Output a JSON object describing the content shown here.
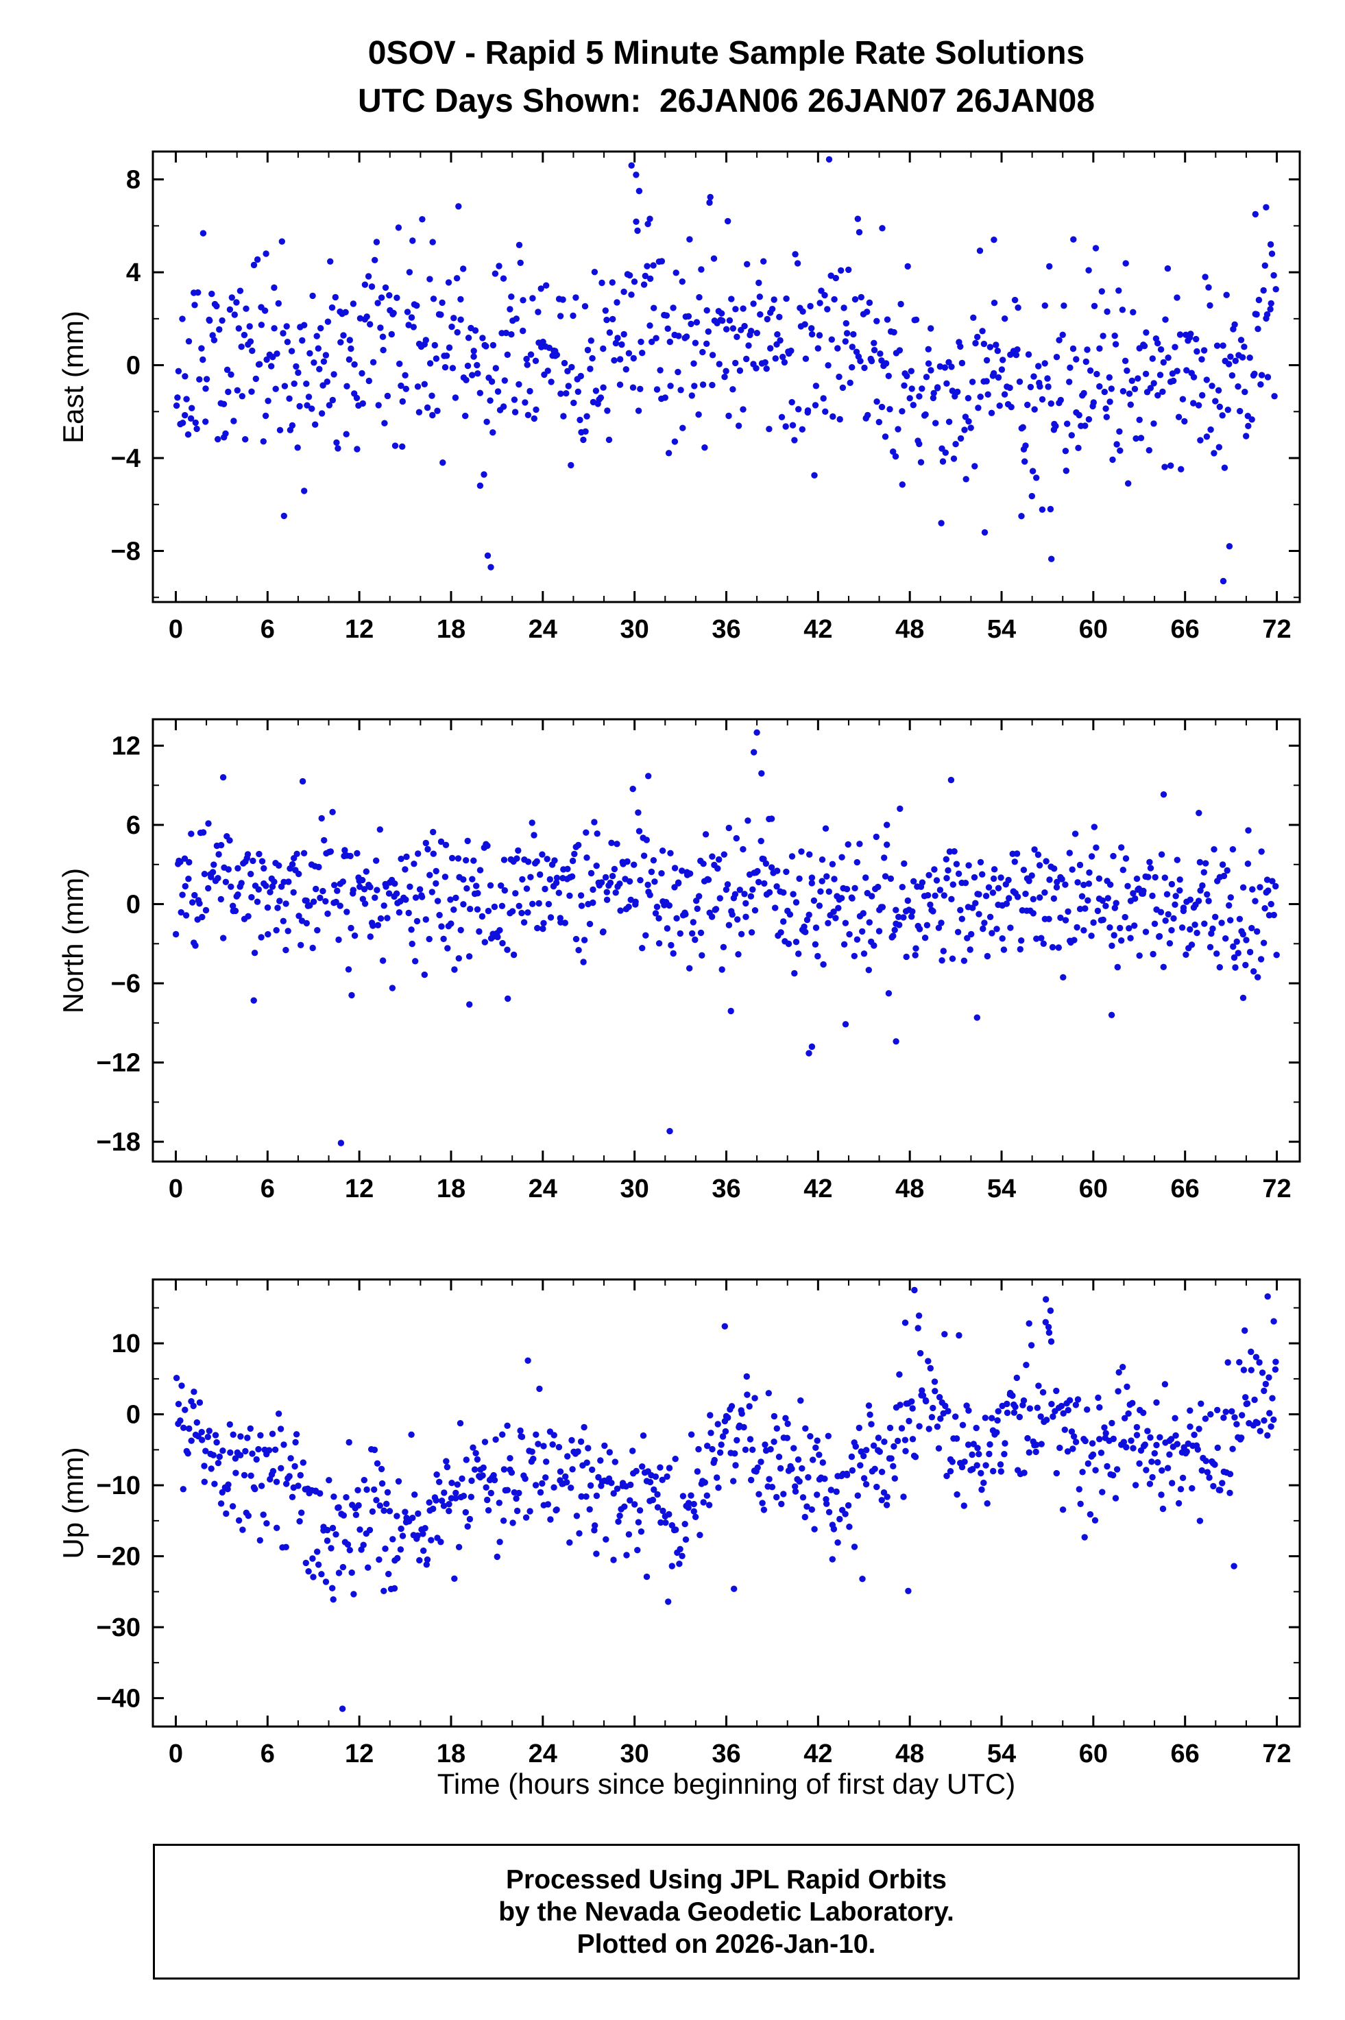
{
  "title": {
    "line1": "0SOV - Rapid 5 Minute Sample Rate Solutions",
    "line2": "UTC Days Shown:  26JAN06 26JAN07 26JAN08"
  },
  "xaxis": {
    "label": "Time (hours since beginning of first day UTC)",
    "lim": [
      -1.5,
      73.5
    ],
    "ticks": [
      0,
      6,
      12,
      18,
      24,
      30,
      36,
      42,
      48,
      54,
      60,
      66,
      72
    ],
    "minor_step": 2
  },
  "marker": {
    "color": "#0e0edd",
    "radius": 4.7
  },
  "seed": 1234567,
  "footer": {
    "line1": "Processed Using JPL Rapid Orbits",
    "line2": "by the Nevada Geodetic Laboratory.",
    "line3": "Plotted on 2026-Jan-10."
  },
  "chart_data": [
    {
      "type": "scatter",
      "series": "East",
      "ylabel": "East (mm)",
      "ylim": [
        -10.2,
        9.2
      ],
      "yticks": [
        -8,
        -4,
        0,
        4,
        8
      ],
      "y_minor_step": 2,
      "n_points": 850,
      "x_range": [
        0,
        72
      ],
      "noise_std": 2.1,
      "mean_path": [
        [
          0,
          -0.5
        ],
        [
          2,
          0.3
        ],
        [
          4,
          0.8
        ],
        [
          6,
          1.2
        ],
        [
          8,
          -0.5
        ],
        [
          10,
          0.0
        ],
        [
          12,
          1.0
        ],
        [
          14,
          0.5
        ],
        [
          16,
          1.2
        ],
        [
          18,
          0.8
        ],
        [
          20,
          -1.0
        ],
        [
          22,
          0.5
        ],
        [
          24,
          0.3
        ],
        [
          26,
          -0.5
        ],
        [
          28,
          0.0
        ],
        [
          30,
          2.0
        ],
        [
          32,
          0.5
        ],
        [
          34,
          1.0
        ],
        [
          36,
          0.5
        ],
        [
          38,
          0.5
        ],
        [
          40,
          0.8
        ],
        [
          42,
          1.0
        ],
        [
          44,
          1.5
        ],
        [
          46,
          0.8
        ],
        [
          48,
          -0.8
        ],
        [
          50,
          -1.5
        ],
        [
          52,
          -0.8
        ],
        [
          54,
          -0.2
        ],
        [
          56,
          -2.0
        ],
        [
          58,
          -0.8
        ],
        [
          60,
          -0.3
        ],
        [
          62,
          -1.2
        ],
        [
          64,
          -0.8
        ],
        [
          66,
          -0.5
        ],
        [
          68,
          -1.5
        ],
        [
          70,
          0.5
        ],
        [
          72,
          3.0
        ]
      ],
      "outliers": [
        [
          20.4,
          -8.2
        ],
        [
          20.6,
          -8.7
        ],
        [
          29.8,
          8.6
        ],
        [
          30.1,
          8.2
        ],
        [
          30.3,
          7.5
        ],
        [
          31.0,
          6.3
        ],
        [
          34.9,
          7.0
        ],
        [
          36.1,
          6.2
        ],
        [
          44.6,
          6.3
        ],
        [
          46.2,
          5.9
        ],
        [
          53.5,
          5.4
        ],
        [
          52.9,
          -7.2
        ],
        [
          55.3,
          -6.5
        ],
        [
          57.2,
          -6.2
        ],
        [
          68.5,
          -9.3
        ],
        [
          68.9,
          -7.8
        ],
        [
          70.6,
          6.5
        ],
        [
          71.3,
          6.8
        ],
        [
          71.6,
          5.2
        ],
        [
          5.9,
          4.8
        ],
        [
          16.8,
          5.3
        ]
      ]
    },
    {
      "type": "scatter",
      "series": "North",
      "ylabel": "North (mm)",
      "ylim": [
        -19.5,
        14.0
      ],
      "yticks": [
        -18,
        -12,
        -6,
        0,
        6,
        12
      ],
      "y_minor_step": 3,
      "n_points": 850,
      "x_range": [
        0,
        72
      ],
      "noise_std": 2.6,
      "mean_path": [
        [
          0,
          1.2
        ],
        [
          4,
          1.5
        ],
        [
          8,
          0.8
        ],
        [
          12,
          1.0
        ],
        [
          16,
          0.5
        ],
        [
          20,
          0.8
        ],
        [
          24,
          0.8
        ],
        [
          28,
          1.2
        ],
        [
          32,
          0.5
        ],
        [
          36,
          0.3
        ],
        [
          38,
          2.5
        ],
        [
          40,
          0.5
        ],
        [
          44,
          -0.2
        ],
        [
          48,
          0.5
        ],
        [
          52,
          0.0
        ],
        [
          56,
          0.2
        ],
        [
          60,
          -0.2
        ],
        [
          64,
          0.3
        ],
        [
          68,
          -0.5
        ],
        [
          72,
          -0.5
        ]
      ],
      "outliers": [
        [
          10.8,
          -18.1
        ],
        [
          32.3,
          -17.2
        ],
        [
          38.0,
          13.0
        ],
        [
          37.8,
          11.5
        ],
        [
          3.1,
          9.6
        ],
        [
          8.3,
          9.3
        ],
        [
          30.9,
          9.7
        ],
        [
          50.7,
          9.4
        ],
        [
          38.3,
          9.9
        ],
        [
          41.4,
          -11.3
        ],
        [
          41.6,
          -10.8
        ],
        [
          43.8,
          -9.1
        ],
        [
          47.1,
          -10.4
        ],
        [
          5.1,
          -7.3
        ],
        [
          11.5,
          -6.9
        ],
        [
          19.2,
          -7.6
        ],
        [
          36.3,
          -8.1
        ],
        [
          52.4,
          -8.6
        ],
        [
          61.2,
          -8.4
        ],
        [
          64.6,
          8.3
        ],
        [
          66.9,
          6.9
        ],
        [
          69.8,
          -7.1
        ]
      ]
    },
    {
      "type": "scatter",
      "series": "Up",
      "ylabel": "Up (mm)",
      "ylim": [
        -44.0,
        19.0
      ],
      "yticks": [
        -40,
        -30,
        -20,
        -10,
        0,
        10
      ],
      "y_minor_step": 5,
      "n_points": 850,
      "x_range": [
        0,
        72
      ],
      "noise_std": 4.5,
      "mean_path": [
        [
          0,
          -1
        ],
        [
          1,
          0
        ],
        [
          2,
          -3
        ],
        [
          4,
          -8
        ],
        [
          6,
          -8
        ],
        [
          8,
          -10
        ],
        [
          9,
          -14
        ],
        [
          11,
          -18
        ],
        [
          13,
          -13
        ],
        [
          15,
          -16
        ],
        [
          17,
          -13
        ],
        [
          19,
          -9
        ],
        [
          21,
          -10
        ],
        [
          23,
          -6
        ],
        [
          25,
          -8
        ],
        [
          27,
          -11
        ],
        [
          29,
          -12
        ],
        [
          31,
          -10
        ],
        [
          33,
          -15
        ],
        [
          34,
          -10
        ],
        [
          36,
          -5
        ],
        [
          37,
          -3
        ],
        [
          38,
          -6
        ],
        [
          40,
          -6
        ],
        [
          42,
          -9
        ],
        [
          44,
          -12
        ],
        [
          45,
          -8
        ],
        [
          47,
          -5
        ],
        [
          48,
          1
        ],
        [
          50,
          -1
        ],
        [
          52,
          -4
        ],
        [
          54,
          -3
        ],
        [
          56,
          1
        ],
        [
          57,
          3
        ],
        [
          58,
          -4
        ],
        [
          60,
          -6
        ],
        [
          62,
          -2
        ],
        [
          64,
          -8
        ],
        [
          66,
          -5
        ],
        [
          68,
          -7
        ],
        [
          69,
          -3
        ],
        [
          70,
          0
        ],
        [
          71,
          3
        ],
        [
          72,
          6
        ]
      ],
      "outliers": [
        [
          10.9,
          -41.5
        ],
        [
          48.3,
          17.5
        ],
        [
          56.9,
          16.2
        ],
        [
          57.2,
          14.6
        ],
        [
          48.6,
          13.9
        ],
        [
          55.8,
          12.8
        ],
        [
          71.4,
          16.6
        ],
        [
          71.8,
          13.1
        ],
        [
          35.9,
          12.4
        ],
        [
          47.7,
          12.9
        ],
        [
          69.9,
          11.8
        ],
        [
          32.2,
          -26.4
        ],
        [
          10.3,
          -26.1
        ],
        [
          13.6,
          -24.9
        ],
        [
          36.5,
          -24.6
        ],
        [
          47.9,
          -24.9
        ],
        [
          30.8,
          -22.9
        ],
        [
          69.2,
          -21.4
        ],
        [
          44.9,
          -23.2
        ]
      ]
    }
  ]
}
